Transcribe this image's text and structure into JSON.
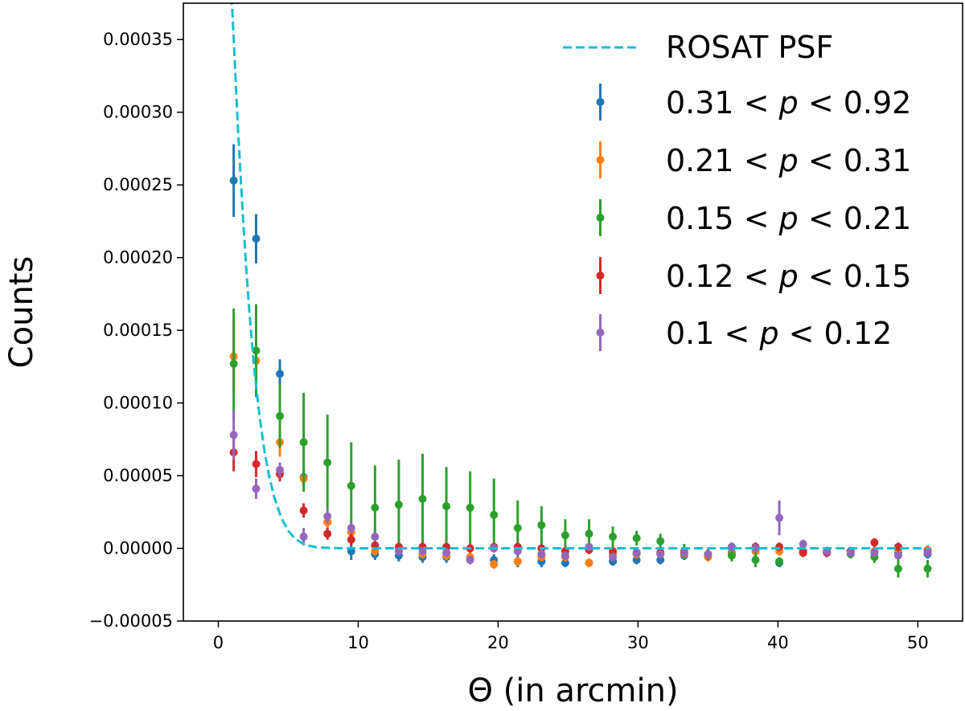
{
  "chart_data": {
    "type": "scatter",
    "title": "",
    "xlabel": "Θ (in arcmin)",
    "ylabel": "Counts",
    "xlim": [
      -2.5,
      53.2
    ],
    "ylim": [
      -5e-05,
      0.000375
    ],
    "xticks": [
      0,
      10,
      20,
      30,
      40,
      50
    ],
    "xtick_labels": [
      "0",
      "10",
      "20",
      "30",
      "40",
      "50"
    ],
    "yticks": [
      -5e-05,
      0.0,
      5e-05,
      0.0001,
      0.00015,
      0.0002,
      0.00025,
      0.0003,
      0.00035
    ],
    "ytick_labels": [
      "−0.00005",
      "0.00000",
      "0.00005",
      "0.00010",
      "0.00015",
      "0.00020",
      "0.00025",
      "0.00030",
      "0.00035"
    ],
    "grid": false,
    "legend_position": "top-right",
    "psf": {
      "name": "ROSAT PSF",
      "style": "dashed",
      "color": "#17becf",
      "x": [
        0.9,
        1.0,
        1.2,
        1.4,
        1.6,
        1.8,
        2.0,
        2.2,
        2.4,
        2.6,
        2.8,
        3.0,
        3.3,
        3.6,
        4.0,
        4.5,
        5.0,
        5.5,
        6.0,
        6.5,
        7.0,
        8.0,
        10.0,
        20.0,
        30.0,
        40.0,
        50.9
      ],
      "y": [
        0.00038,
        0.00037,
        0.00033,
        0.00029,
        0.000255,
        0.000222,
        0.000192,
        0.000165,
        0.000142,
        0.000121,
        0.000103,
        8.7e-05,
        6.7e-05,
        5.1e-05,
        3.5e-05,
        2.1e-05,
        1.2e-05,
        6.5e-06,
        3.5e-06,
        1.8e-06,
        8e-07,
        2e-07,
        0.0,
        0.0,
        0.0,
        0.0,
        0.0
      ]
    },
    "series": [
      {
        "name": "0.31 < p < 0.92",
        "label_prefix": "0.31",
        "label_suffix": "0.92",
        "color": "#1f77b4",
        "x": [
          1.1,
          2.7,
          4.4,
          6.1,
          7.8,
          9.5,
          11.2,
          12.9,
          14.6,
          16.3,
          18.0,
          19.7,
          21.4,
          23.1,
          24.8,
          26.5,
          28.2,
          29.9,
          31.6,
          33.3,
          35.0,
          36.7,
          38.4,
          40.1,
          41.8,
          43.5,
          45.2,
          46.9,
          48.6,
          50.7
        ],
        "y": [
          0.000253,
          0.000213,
          0.00012,
          4.9e-05,
          1.8e-05,
          -2e-06,
          -4e-06,
          -5e-06,
          -6e-06,
          -6e-06,
          -7e-06,
          -8e-06,
          -9e-06,
          -9e-06,
          -1e-05,
          -1e-05,
          -9e-06,
          -8e-06,
          -8e-06,
          -5e-06,
          -5e-06,
          -3e-06,
          -2e-06,
          -1e-05,
          -2e-06,
          -2e-06,
          -2e-06,
          -2e-06,
          -3e-06,
          -4e-06
        ],
        "err": [
          2.5e-05,
          1.7e-05,
          1e-05,
          6e-06,
          5e-06,
          6e-06,
          4e-06,
          4e-06,
          4e-06,
          4e-06,
          4e-06,
          4e-06,
          4e-06,
          4e-06,
          3e-06,
          3e-06,
          3e-06,
          3e-06,
          3e-06,
          3e-06,
          3e-06,
          3e-06,
          3e-06,
          3e-06,
          3e-06,
          3e-06,
          3e-06,
          3e-06,
          3e-06,
          3e-06
        ]
      },
      {
        "name": "0.21 < p < 0.31",
        "label_prefix": "0.21",
        "label_suffix": "0.31",
        "color": "#ff7f0e",
        "x": [
          1.1,
          2.7,
          4.4,
          6.1,
          7.8,
          9.5,
          11.2,
          12.9,
          14.6,
          16.3,
          18.0,
          19.7,
          21.4,
          23.1,
          24.8,
          26.5,
          28.2,
          29.9,
          31.6,
          33.3,
          35.0,
          36.7,
          38.4,
          40.1,
          41.8,
          43.5,
          45.2,
          46.9,
          48.6,
          50.7
        ],
        "y": [
          0.000132,
          0.000129,
          7.3e-05,
          4.8e-05,
          1.8e-05,
          1.1e-05,
          -2e-06,
          -2e-06,
          -4e-06,
          -5e-06,
          -6e-06,
          -1.1e-05,
          -9e-06,
          -6e-06,
          -6e-06,
          -1e-05,
          -4e-06,
          -4e-06,
          -4e-06,
          -4e-06,
          -6e-06,
          -4e-06,
          -2e-06,
          -2e-06,
          -3e-06,
          -2e-06,
          -2e-06,
          -2e-06,
          -1e-06,
          -1e-06
        ],
        "err": [
          2.5e-05,
          1.8e-05,
          1e-05,
          5e-06,
          4e-06,
          3e-06,
          3e-06,
          3e-06,
          3e-06,
          3e-06,
          3e-06,
          3e-06,
          3e-06,
          3e-06,
          3e-06,
          3e-06,
          3e-06,
          3e-06,
          3e-06,
          3e-06,
          3e-06,
          3e-06,
          3e-06,
          3e-06,
          3e-06,
          3e-06,
          3e-06,
          3e-06,
          3e-06,
          3e-06
        ]
      },
      {
        "name": "0.15 < p < 0.21",
        "label_prefix": "0.15",
        "label_suffix": "0.21",
        "color": "#2ca02c",
        "x": [
          1.1,
          2.7,
          4.4,
          6.1,
          7.8,
          9.5,
          11.2,
          12.9,
          14.6,
          16.3,
          18.0,
          19.7,
          21.4,
          23.1,
          24.8,
          26.5,
          28.2,
          29.9,
          31.6,
          33.3,
          35.0,
          36.7,
          38.4,
          40.1,
          41.8,
          43.5,
          45.2,
          46.9,
          48.6,
          50.7
        ],
        "y": [
          0.000127,
          0.000136,
          9.1e-05,
          7.3e-05,
          5.9e-05,
          4.3e-05,
          2.8e-05,
          3e-05,
          3.4e-05,
          2.9e-05,
          2.8e-05,
          2.3e-05,
          1.4e-05,
          1.6e-05,
          9e-06,
          1e-05,
          8e-06,
          7e-06,
          5e-06,
          -2e-06,
          -4e-06,
          -5e-06,
          -8e-06,
          -9e-06,
          -2e-06,
          -3e-06,
          -4e-06,
          -6e-06,
          -1.4e-05,
          -1.4e-05
        ],
        "err": [
          3.8e-05,
          3.2e-05,
          2.2e-05,
          3.4e-05,
          3.3e-05,
          3e-05,
          2.9e-05,
          3.1e-05,
          3.1e-05,
          2.7e-05,
          2.5e-05,
          2.5e-05,
          1.9e-05,
          1.3e-05,
          1.1e-05,
          1e-05,
          7e-06,
          5e-06,
          5e-06,
          5e-06,
          4e-06,
          4e-06,
          5e-06,
          3e-06,
          3e-06,
          3e-06,
          3e-06,
          4e-06,
          6e-06,
          6e-06
        ]
      },
      {
        "name": "0.12 < p < 0.15",
        "label_prefix": "0.12",
        "label_suffix": "0.15",
        "color": "#d62728",
        "x": [
          1.1,
          2.7,
          4.4,
          6.1,
          7.8,
          9.5,
          11.2,
          12.9,
          14.6,
          16.3,
          18.0,
          19.7,
          21.4,
          23.1,
          24.8,
          26.5,
          28.2,
          29.9,
          31.6,
          33.3,
          35.0,
          36.7,
          38.4,
          40.1,
          41.8,
          43.5,
          45.2,
          46.9,
          48.6,
          50.7
        ],
        "y": [
          6.6e-05,
          5.8e-05,
          5.1e-05,
          2.6e-05,
          1e-05,
          6e-06,
          2e-06,
          1e-06,
          1e-06,
          1e-06,
          0.0,
          1e-06,
          1e-06,
          0.0,
          -2e-06,
          -1e-06,
          -2e-06,
          -3e-06,
          -3e-06,
          -3e-06,
          -4e-06,
          1e-06,
          1e-06,
          1e-06,
          -3e-06,
          -3e-06,
          -2e-06,
          4e-06,
          1e-06,
          -2e-06
        ],
        "err": [
          1.3e-05,
          9e-06,
          5e-06,
          5e-06,
          4e-06,
          4e-06,
          3e-06,
          3e-06,
          3e-06,
          3e-06,
          3e-06,
          3e-06,
          3e-06,
          3e-06,
          3e-06,
          3e-06,
          3e-06,
          3e-06,
          3e-06,
          3e-06,
          3e-06,
          3e-06,
          3e-06,
          3e-06,
          3e-06,
          3e-06,
          3e-06,
          3e-06,
          3e-06,
          3e-06
        ]
      },
      {
        "name": "0.1 < p < 0.12",
        "label_prefix": "0.1",
        "label_suffix": "0.12",
        "color": "#9467bd",
        "x": [
          1.1,
          2.7,
          4.4,
          6.1,
          7.8,
          9.5,
          11.2,
          12.9,
          14.6,
          16.3,
          18.0,
          19.7,
          21.4,
          23.1,
          24.8,
          26.5,
          28.2,
          29.9,
          31.6,
          33.3,
          35.0,
          36.7,
          38.4,
          40.1,
          41.8,
          43.5,
          45.2,
          46.9,
          48.6,
          50.7
        ],
        "y": [
          7.8e-05,
          4.1e-05,
          5.4e-05,
          8e-06,
          2.2e-05,
          1.4e-05,
          8e-06,
          -2e-06,
          -2e-06,
          -3e-06,
          -8e-06,
          0.0,
          -2e-06,
          -4e-06,
          -5e-06,
          1e-06,
          -6e-06,
          -3e-06,
          -4e-06,
          -3e-06,
          -4e-06,
          1e-06,
          0.0,
          2.1e-05,
          3e-06,
          -2e-06,
          -3e-06,
          -3e-06,
          -5e-06,
          -3e-06
        ],
        "err": [
          1.7e-05,
          7e-06,
          5e-06,
          6e-06,
          5e-06,
          4e-06,
          3e-06,
          3e-06,
          3e-06,
          3e-06,
          3e-06,
          3e-06,
          3e-06,
          3e-06,
          3e-06,
          3e-06,
          3e-06,
          3e-06,
          3e-06,
          3e-06,
          3e-06,
          3e-06,
          3e-06,
          1.2e-05,
          3e-06,
          3e-06,
          3e-06,
          3e-06,
          3e-06,
          3e-06
        ]
      }
    ]
  }
}
